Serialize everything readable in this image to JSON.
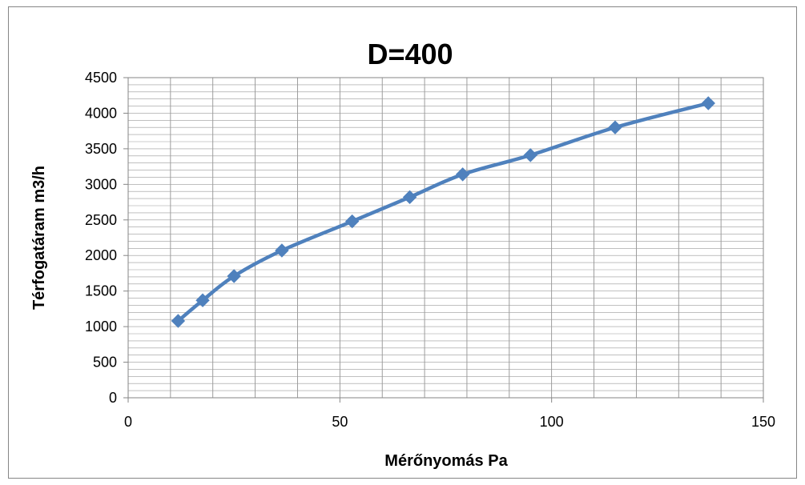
{
  "chart_data": {
    "type": "line",
    "title": "D=400",
    "xlabel": "Mérőnyomás  Pa",
    "ylabel": "Térfogatáram m3/h",
    "xlim": [
      0,
      150
    ],
    "ylim": [
      0,
      4500
    ],
    "x_ticks": [
      "0",
      "50",
      "100",
      "150"
    ],
    "y_ticks": [
      "0",
      "500",
      "1000",
      "1500",
      "2000",
      "2500",
      "3000",
      "3500",
      "4000",
      "4500"
    ],
    "grid": true,
    "legend": "none",
    "series": [
      {
        "color": "#4F81BD",
        "marker": "diamond",
        "x": [
          11.8,
          17.6,
          25.0,
          36.3,
          52.9,
          66.5,
          79.0,
          95.0,
          115.0,
          137.0
        ],
        "y": [
          1080,
          1370,
          1710,
          2070,
          2480,
          2820,
          3140,
          3410,
          3800,
          4140
        ]
      }
    ]
  }
}
